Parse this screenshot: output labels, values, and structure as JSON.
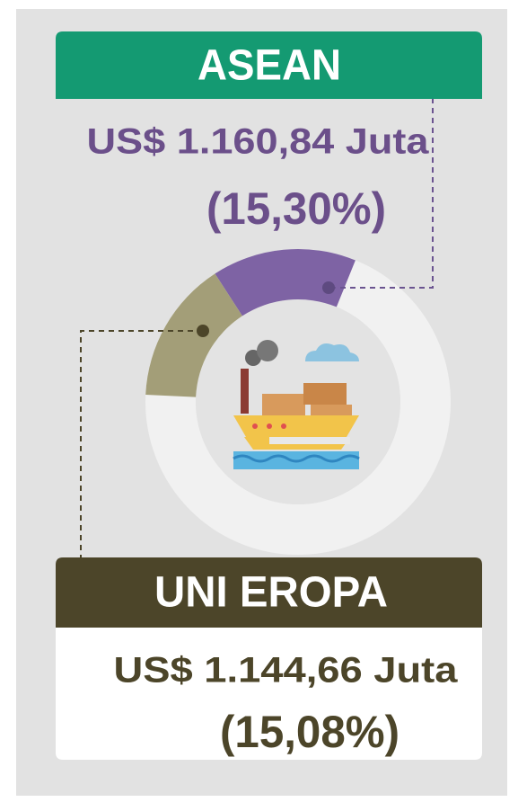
{
  "chart_data": {
    "type": "donut",
    "categories": [
      "ASEAN",
      "UNI EROPA"
    ],
    "amount_labels": [
      "US$ 1.160,84 Juta",
      "US$ 1.144,66 Juta"
    ],
    "values": [
      15.3,
      15.08
    ],
    "value_labels": [
      "(15,30%)",
      "(15,08%)"
    ],
    "colors": [
      "#7e63a4",
      "#a39e78"
    ]
  }
}
